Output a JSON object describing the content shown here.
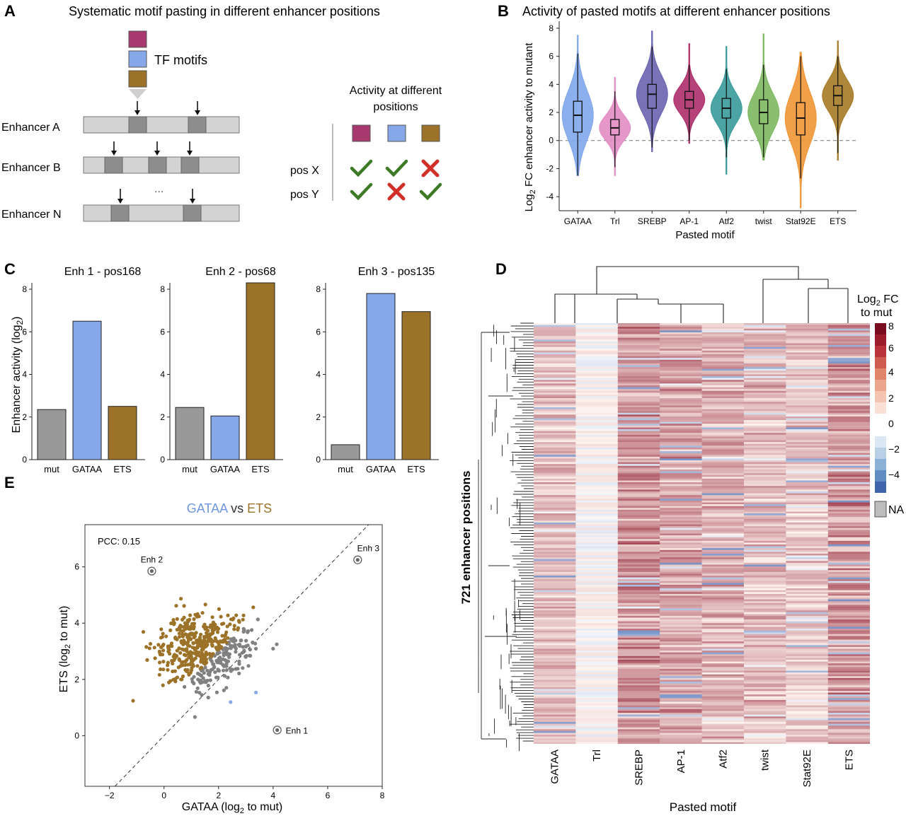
{
  "panels": {
    "a": "A",
    "b": "B",
    "c": "C",
    "d": "D",
    "e": "E"
  },
  "colors": {
    "mut": "#999999",
    "gataa": "#86a8e8",
    "ets": "#9b7228",
    "purple": "#a8396f",
    "tick": "#3d7a25",
    "cross": "#d0302a"
  },
  "panel_a": {
    "title": "Systematic motif pasting in different enhancer positions",
    "motif_label": "TF motifs",
    "enhancers": [
      "Enhancer A",
      "Enhancer B",
      "Enhancer N"
    ],
    "ellipsis": "...",
    "activity_title": [
      "Activity at different",
      "positions"
    ],
    "rows": [
      {
        "label": "pos X",
        "marks": [
          "check",
          "check",
          "cross"
        ]
      },
      {
        "label": "pos Y",
        "marks": [
          "check",
          "cross",
          "check"
        ]
      }
    ]
  },
  "chart_data": [
    {
      "type": "violin",
      "title": "Activity of pasted motifs at different enhancer positions",
      "xlabel": "Pasted motif",
      "ylabel": "Log2 FC enhancer activity to mutant",
      "ylim": [
        -5,
        8.5
      ],
      "yticks": [
        "8",
        "6",
        "4",
        "2",
        "0",
        "-2",
        "-4"
      ],
      "reference_line": 0,
      "categories": [
        "GATAA",
        "Trl",
        "SREBP",
        "AP-1",
        "Atf2",
        "twist",
        "Stat92E",
        "ETS"
      ],
      "colors": [
        "#7fa6ec",
        "#e28cc3",
        "#6a63b0",
        "#ad2d6a",
        "#3a9a9a",
        "#7cb85e",
        "#ef9535",
        "#a67a26"
      ],
      "series": [
        {
          "min": -2.5,
          "q1": 0.6,
          "median": 1.8,
          "q3": 2.8,
          "max": 7.5,
          "whisker_low": -2.5,
          "whisker_high": 6.2
        },
        {
          "min": -2.5,
          "q1": 0.4,
          "median": 0.9,
          "q3": 1.5,
          "max": 4.5,
          "whisker_low": -1.9,
          "whisker_high": 3.5
        },
        {
          "min": -0.8,
          "q1": 2.3,
          "median": 3.3,
          "q3": 4.0,
          "max": 7.8,
          "whisker_low": -0.5,
          "whisker_high": 6.7
        },
        {
          "min": -0.2,
          "q1": 2.3,
          "median": 2.9,
          "q3": 3.5,
          "max": 6.9,
          "whisker_low": 0.0,
          "whisker_high": 5.4
        },
        {
          "min": -2.4,
          "q1": 1.6,
          "median": 2.3,
          "q3": 3.0,
          "max": 6.7,
          "whisker_low": -1.2,
          "whisker_high": 5.1
        },
        {
          "min": -1.4,
          "q1": 1.2,
          "median": 2.0,
          "q3": 2.9,
          "max": 7.6,
          "whisker_low": -1.2,
          "whisker_high": 5.4
        },
        {
          "min": -4.8,
          "q1": 0.4,
          "median": 1.6,
          "q3": 2.7,
          "max": 6.3,
          "whisker_low": -2.7,
          "whisker_high": 6.0
        },
        {
          "min": -1.4,
          "q1": 2.5,
          "median": 3.2,
          "q3": 3.9,
          "max": 7.1,
          "whisker_low": -0.9,
          "whisker_high": 6.0
        }
      ]
    },
    {
      "type": "bar",
      "title": "Enh 1 - pos168",
      "ylabel": "Enhancer activity (log2)",
      "categories": [
        "mut",
        "GATAA",
        "ETS"
      ],
      "values": [
        2.35,
        6.5,
        2.5
      ],
      "ylim": [
        0,
        8.3
      ],
      "yticks": [
        "0",
        "2",
        "4",
        "6",
        "8"
      ]
    },
    {
      "type": "bar",
      "title": "Enh 2 - pos68",
      "categories": [
        "mut",
        "GATAA",
        "ETS"
      ],
      "values": [
        2.45,
        2.05,
        8.3
      ],
      "ylim": [
        0,
        8.3
      ],
      "yticks": [
        "0",
        "2",
        "4",
        "6",
        "8"
      ]
    },
    {
      "type": "bar",
      "title": "Enh 3 - pos135",
      "categories": [
        "mut",
        "GATAA",
        "ETS"
      ],
      "values": [
        0.7,
        7.8,
        6.95
      ],
      "ylim": [
        0,
        8.3
      ],
      "yticks": [
        "0",
        "2",
        "4",
        "6",
        "8"
      ]
    },
    {
      "type": "heatmap",
      "ylabel": "721 enhancer positions",
      "xlabel": "Pasted motif",
      "columns": [
        "GATAA",
        "Trl",
        "SREBP",
        "AP-1",
        "Atf2",
        "twist",
        "Stat92E",
        "ETS"
      ],
      "column_mean_log2fc": [
        1.8,
        0.9,
        3.3,
        2.9,
        2.3,
        2.0,
        1.6,
        3.2
      ],
      "n_rows": 721,
      "legend_title": [
        "Log2 FC",
        "to mut"
      ],
      "legend_ticks": [
        "8",
        "6",
        "4",
        "2",
        "0",
        "−2",
        "−4"
      ],
      "na_label": "NA"
    },
    {
      "type": "scatter",
      "title": [
        "GATAA",
        " vs ",
        "ETS"
      ],
      "xlabel": "GATAA (log2 to mut)",
      "ylabel": "ETS (log2 to mut)",
      "xlim": [
        -2.9,
        8
      ],
      "ylim": [
        -1.8,
        7.5
      ],
      "xticks": [
        "−2",
        "0",
        "2",
        "4",
        "6",
        "8"
      ],
      "yticks": [
        "0",
        "2",
        "4",
        "6"
      ],
      "annotation": "PCC: 0.15",
      "highlights": [
        {
          "label": "Enh 1",
          "x": 4.15,
          "y": 0.2
        },
        {
          "label": "Enh 2",
          "x": -0.45,
          "y": 5.85
        },
        {
          "label": "Enh 3",
          "x": 7.1,
          "y": 6.25
        }
      ]
    }
  ]
}
